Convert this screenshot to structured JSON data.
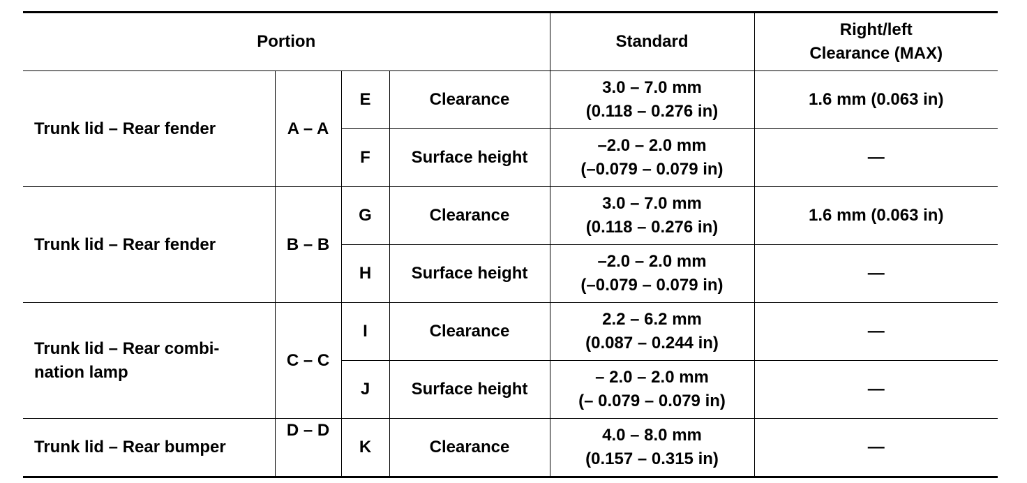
{
  "table": {
    "header": [
      "Portion",
      "Standard",
      "Right/left\nClearance (MAX)"
    ],
    "groups": [
      {
        "portion": "Trunk lid – Rear fender",
        "section": "A – A",
        "items": [
          {
            "code": "E",
            "item": "Clearance",
            "standard": "3.0 – 7.0 mm\n(0.118 – 0.276 in)",
            "max": "1.6 mm (0.063 in)"
          },
          {
            "code": "F",
            "item": "Surface height",
            "standard": "–2.0 – 2.0 mm\n(–0.079 – 0.079 in)",
            "max": "—"
          }
        ]
      },
      {
        "portion": "Trunk lid – Rear fender",
        "section": "B – B",
        "items": [
          {
            "code": "G",
            "item": "Clearance",
            "standard": "3.0 – 7.0 mm\n(0.118 – 0.276 in)",
            "max": "1.6 mm (0.063 in)"
          },
          {
            "code": "H",
            "item": "Surface height",
            "standard": "–2.0 – 2.0 mm\n(–0.079 – 0.079 in)",
            "max": "—"
          }
        ]
      },
      {
        "portion": "Trunk lid – Rear combi-\nnation lamp",
        "section": "C – C",
        "items": [
          {
            "code": "I",
            "item": "Clearance",
            "standard": "2.2 – 6.2 mm\n(0.087 – 0.244 in)",
            "max": "—"
          },
          {
            "code": "J",
            "item": "Surface height",
            "standard": "– 2.0 – 2.0 mm\n(– 0.079 – 0.079 in)",
            "max": "—"
          }
        ]
      },
      {
        "portion": "Trunk lid – Rear bumper",
        "section": "D – D",
        "items": [
          {
            "code": "K",
            "item": "Clearance",
            "standard": "4.0 – 8.0 mm\n(0.157 – 0.315 in)",
            "max": "—"
          }
        ]
      }
    ]
  }
}
